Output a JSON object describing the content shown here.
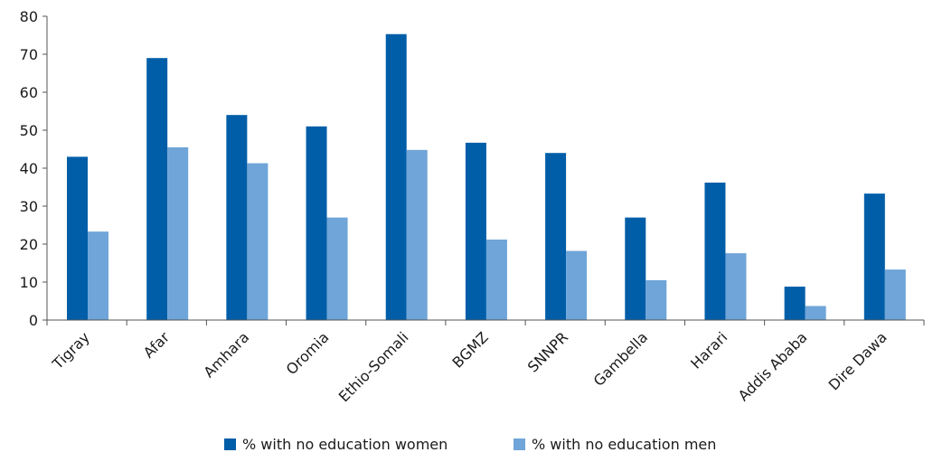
{
  "chart_data": {
    "type": "bar",
    "categories": [
      "Tigray",
      "Afar",
      "Amhara",
      "Oromia",
      "Ethio-Somali",
      "BGMZ",
      "SNNPR",
      "Gambella",
      "Harari",
      "Addis Ababa",
      "Dire Dawa"
    ],
    "series": [
      {
        "name": "% with no education women",
        "color": "#005ea8",
        "values": [
          43,
          69,
          54,
          51,
          75.3,
          46.7,
          44,
          27,
          36.2,
          8.8,
          33.3
        ]
      },
      {
        "name": "% with no education men",
        "color": "#6fa5d8",
        "values": [
          23.3,
          45.5,
          41.3,
          27,
          44.8,
          21.2,
          18.2,
          10.5,
          17.6,
          3.7,
          13.3
        ]
      }
    ],
    "ylim": [
      0,
      80
    ],
    "yticks": [
      0,
      10,
      20,
      30,
      40,
      50,
      60,
      70,
      80
    ],
    "grid": false,
    "legend_position": "bottom-center",
    "title": "",
    "xlabel": "",
    "ylabel": ""
  }
}
